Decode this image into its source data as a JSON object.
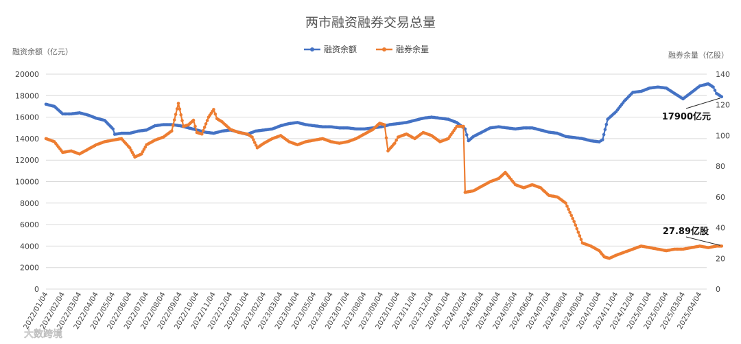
{
  "chart_data": {
    "type": "line",
    "title": "两市融资融券交易总量",
    "y_left_label": "融资余额（亿元）",
    "y_right_label": "融券余量（亿股）",
    "y_left_ticks": [
      "0",
      "2000",
      "4000",
      "6000",
      "8000",
      "10000",
      "12000",
      "14000",
      "16000",
      "18000",
      "20000"
    ],
    "y_right_ticks": [
      "0",
      "20",
      "40",
      "60",
      "80",
      "100",
      "120",
      "140"
    ],
    "y_left_lim": [
      0,
      20000
    ],
    "y_right_lim": [
      0,
      140
    ],
    "x_labels": [
      "2022/01/04",
      "2022/02/04",
      "2022/03/04",
      "2022/04/04",
      "2022/05/04",
      "2022/06/04",
      "2022/07/04",
      "2022/08/04",
      "2022/09/04",
      "2022/10/04",
      "2022/11/04",
      "2022/12/04",
      "2023/01/04",
      "2023/02/04",
      "2023/03/04",
      "2023/04/04",
      "2023/05/04",
      "2023/06/04",
      "2023/07/04",
      "2023/08/04",
      "2023/09/04",
      "2023/10/04",
      "2023/11/04",
      "2023/12/04",
      "2024/01/04",
      "2024/02/04",
      "2024/03/04",
      "2024/04/04",
      "2024/05/04",
      "2024/06/04",
      "2024/07/04",
      "2024/08/04",
      "2024/09/04",
      "2024/10/04",
      "2024/11/04",
      "2024/12/04",
      "2025/01/04",
      "2025/02/04",
      "2025/03/04",
      "2025/04/04"
    ],
    "grid": true,
    "legend_position": "top-center",
    "series": [
      {
        "name": "融资余额",
        "axis": "left",
        "color": "#4472C4",
        "points": [
          [
            0,
            17200
          ],
          [
            0.5,
            17000
          ],
          [
            1,
            16300
          ],
          [
            1.5,
            16300
          ],
          [
            2,
            16400
          ],
          [
            2.5,
            16200
          ],
          [
            3,
            15900
          ],
          [
            3.5,
            15700
          ],
          [
            4,
            14900
          ],
          [
            4.1,
            14400
          ],
          [
            4.5,
            14500
          ],
          [
            5,
            14500
          ],
          [
            5.5,
            14700
          ],
          [
            6,
            14800
          ],
          [
            6.5,
            15200
          ],
          [
            7,
            15300
          ],
          [
            7.5,
            15300
          ],
          [
            8,
            15200
          ],
          [
            8.5,
            15000
          ],
          [
            9,
            14800
          ],
          [
            9.5,
            14600
          ],
          [
            10,
            14500
          ],
          [
            10.5,
            14700
          ],
          [
            11,
            14800
          ],
          [
            11.5,
            14600
          ],
          [
            12,
            14400
          ],
          [
            12.5,
            14700
          ],
          [
            13,
            14800
          ],
          [
            13.5,
            14900
          ],
          [
            14,
            15200
          ],
          [
            14.5,
            15400
          ],
          [
            15,
            15500
          ],
          [
            15.5,
            15300
          ],
          [
            16,
            15200
          ],
          [
            16.5,
            15100
          ],
          [
            17,
            15100
          ],
          [
            17.5,
            15000
          ],
          [
            18,
            15000
          ],
          [
            18.5,
            14900
          ],
          [
            19,
            14900
          ],
          [
            19.5,
            15000
          ],
          [
            20,
            15100
          ],
          [
            20.5,
            15300
          ],
          [
            21,
            15400
          ],
          [
            21.5,
            15500
          ],
          [
            22,
            15700
          ],
          [
            22.5,
            15900
          ],
          [
            23,
            16000
          ],
          [
            23.5,
            15900
          ],
          [
            24,
            15800
          ],
          [
            24.5,
            15500
          ],
          [
            25,
            14900
          ],
          [
            25.2,
            13800
          ],
          [
            25.5,
            14200
          ],
          [
            26,
            14600
          ],
          [
            26.5,
            15000
          ],
          [
            27,
            15100
          ],
          [
            27.5,
            15000
          ],
          [
            28,
            14900
          ],
          [
            28.5,
            15000
          ],
          [
            29,
            15000
          ],
          [
            29.5,
            14800
          ],
          [
            30,
            14600
          ],
          [
            30.5,
            14500
          ],
          [
            31,
            14200
          ],
          [
            31.5,
            14100
          ],
          [
            32,
            14000
          ],
          [
            32.5,
            13800
          ],
          [
            33,
            13700
          ],
          [
            33.2,
            13900
          ],
          [
            33.5,
            15800
          ],
          [
            34,
            16500
          ],
          [
            34.5,
            17500
          ],
          [
            35,
            18300
          ],
          [
            35.5,
            18400
          ],
          [
            36,
            18700
          ],
          [
            36.5,
            18800
          ],
          [
            37,
            18700
          ],
          [
            37.5,
            18200
          ],
          [
            38,
            17700
          ],
          [
            38.5,
            18300
          ],
          [
            39,
            18900
          ],
          [
            39.5,
            19100
          ],
          [
            39.8,
            18800
          ],
          [
            40,
            18200
          ],
          [
            40.3,
            17900
          ]
        ]
      },
      {
        "name": "融券余量",
        "axis": "right",
        "color": "#ED7D31",
        "points": [
          [
            0,
            98
          ],
          [
            0.5,
            96
          ],
          [
            1,
            89
          ],
          [
            1.5,
            90
          ],
          [
            2,
            88
          ],
          [
            2.5,
            91
          ],
          [
            3,
            94
          ],
          [
            3.5,
            96
          ],
          [
            4,
            97
          ],
          [
            4.5,
            98
          ],
          [
            5,
            92
          ],
          [
            5.3,
            86
          ],
          [
            5.7,
            88
          ],
          [
            6,
            94
          ],
          [
            6.5,
            97
          ],
          [
            7,
            99
          ],
          [
            7.5,
            103
          ],
          [
            7.9,
            121
          ],
          [
            8.2,
            106
          ],
          [
            8.5,
            107
          ],
          [
            8.8,
            110
          ],
          [
            9,
            102
          ],
          [
            9.3,
            101
          ],
          [
            9.7,
            112
          ],
          [
            10,
            117
          ],
          [
            10.2,
            111
          ],
          [
            10.5,
            109
          ],
          [
            11,
            104
          ],
          [
            11.5,
            102
          ],
          [
            12,
            101
          ],
          [
            12.3,
            99
          ],
          [
            12.6,
            92
          ],
          [
            13,
            95
          ],
          [
            13.5,
            98
          ],
          [
            14,
            100
          ],
          [
            14.5,
            96
          ],
          [
            15,
            94
          ],
          [
            15.5,
            96
          ],
          [
            16,
            97
          ],
          [
            16.5,
            98
          ],
          [
            17,
            96
          ],
          [
            17.5,
            95
          ],
          [
            18,
            96
          ],
          [
            18.5,
            98
          ],
          [
            19,
            101
          ],
          [
            19.5,
            104
          ],
          [
            19.9,
            108
          ],
          [
            20.2,
            107
          ],
          [
            20.4,
            90
          ],
          [
            20.8,
            95
          ],
          [
            21,
            99
          ],
          [
            21.5,
            101
          ],
          [
            22,
            98
          ],
          [
            22.5,
            102
          ],
          [
            23,
            100
          ],
          [
            23.5,
            96
          ],
          [
            24,
            98
          ],
          [
            24.5,
            106
          ],
          [
            24.9,
            106
          ],
          [
            25,
            63
          ],
          [
            25.5,
            64
          ],
          [
            26,
            67
          ],
          [
            26.5,
            70
          ],
          [
            27,
            72
          ],
          [
            27.4,
            76
          ],
          [
            28,
            68
          ],
          [
            28.5,
            66
          ],
          [
            29,
            68
          ],
          [
            29.5,
            66
          ],
          [
            30,
            61
          ],
          [
            30.5,
            60
          ],
          [
            31,
            56
          ],
          [
            31.5,
            44
          ],
          [
            32,
            30
          ],
          [
            32.5,
            28
          ],
          [
            33,
            25
          ],
          [
            33.3,
            21
          ],
          [
            33.6,
            20
          ],
          [
            34,
            22
          ],
          [
            34.5,
            24
          ],
          [
            35,
            26
          ],
          [
            35.5,
            28
          ],
          [
            36,
            27
          ],
          [
            36.5,
            26
          ],
          [
            37,
            25
          ],
          [
            37.5,
            26
          ],
          [
            38,
            26
          ],
          [
            38.5,
            27
          ],
          [
            39,
            28
          ],
          [
            39.5,
            27
          ],
          [
            40,
            28
          ],
          [
            40.3,
            28
          ]
        ]
      }
    ],
    "annotations": [
      {
        "text": "17900亿元",
        "series": "融资余额"
      },
      {
        "text": "27.89亿股",
        "series": "融券余量"
      }
    ]
  },
  "watermark": "大数跨境",
  "colors": {
    "grid": "#d9d9d9",
    "text": "#444444"
  }
}
